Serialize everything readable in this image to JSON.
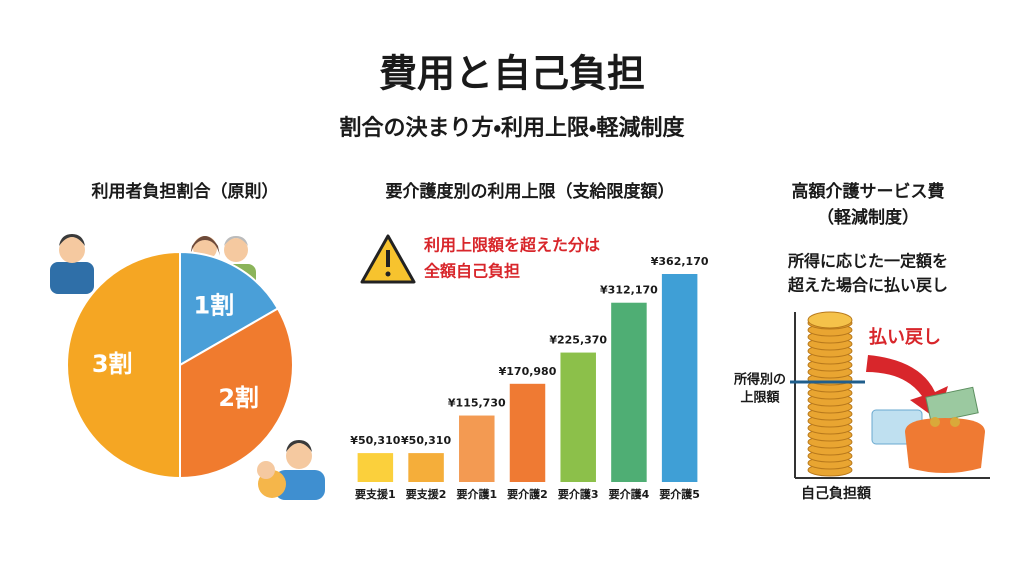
{
  "header": {
    "title": "費用と自己負担",
    "subtitle": "割合の決まり方・利用上限・軽減制度"
  },
  "chart_data": [
    {
      "type": "pie",
      "title": "利用者負担割合（原則）",
      "values": [
        1,
        2,
        3
      ],
      "value_labels": [
        "1割",
        "2割",
        "3割"
      ],
      "colors": [
        "#4a9fd8",
        "#f07b2e",
        "#f5a623"
      ]
    },
    {
      "type": "bar",
      "title": "要介護度別の利用上限（支給限度額）",
      "annotation": [
        "利用上限額を超えた分は",
        "全額自己負担"
      ],
      "categories": [
        "要支援1",
        "要支援2",
        "要介護1",
        "要介護2",
        "要介護3",
        "要介護4",
        "要介護5"
      ],
      "values": [
        50310,
        50310,
        115730,
        170980,
        225370,
        312170,
        362170
      ],
      "value_labels": [
        "¥50,310",
        "¥50,310",
        "¥115,730",
        "¥170,980",
        "¥225,370",
        "¥312,170",
        "¥362,170"
      ],
      "colors": [
        "#fbd03c",
        "#f5ae3a",
        "#f39a52",
        "#ef7a33",
        "#8cc04a",
        "#4fae74",
        "#3f9fd6"
      ]
    }
  ],
  "panel": {
    "title": "高額介護サービス費",
    "subtitle": "（軽減制度）",
    "description": [
      "所得に応じた一定額を",
      "超えた場合に払い戻し"
    ],
    "arrow_label": "払い戻し",
    "line_label": [
      "所得別の",
      "上限額"
    ],
    "x_label": "自己負担額"
  }
}
